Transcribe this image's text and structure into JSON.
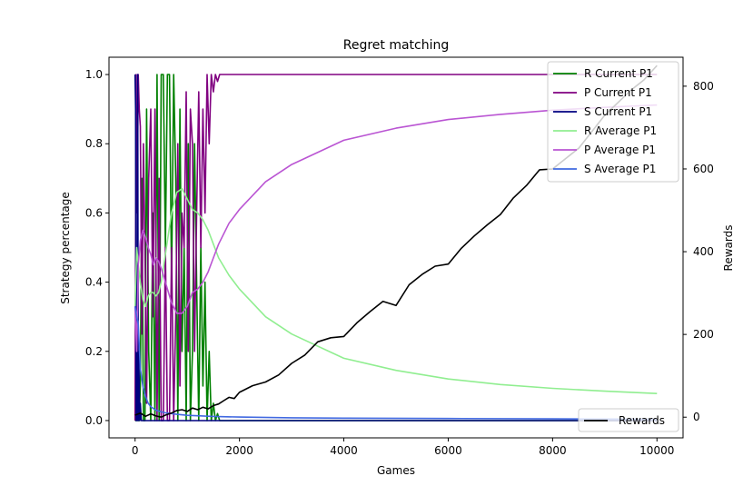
{
  "chart_data": {
    "type": "line",
    "title": "Regret matching",
    "xlabel": "Games",
    "ylabel_left": "Strategy percentage",
    "ylabel_right": "Rewards",
    "xlim": [
      -500,
      10500
    ],
    "ylim_left": [
      -0.05,
      1.05
    ],
    "ylim_right": [
      -50,
      870
    ],
    "x_ticks": [
      0,
      2000,
      4000,
      6000,
      8000,
      10000
    ],
    "y_ticks_left": [
      0.0,
      0.2,
      0.4,
      0.6,
      0.8,
      1.0
    ],
    "y_ticks_right": [
      0,
      200,
      400,
      600,
      800
    ],
    "grid": false,
    "legend_left_axis": "top-right",
    "legend_right_axis": "bottom-right",
    "series": [
      {
        "name": "R Current P1",
        "axis": "left",
        "color": "#008000",
        "x": [
          0,
          20,
          40,
          60,
          80,
          100,
          130,
          160,
          190,
          220,
          260,
          300,
          340,
          380,
          420,
          460,
          500,
          540,
          580,
          620,
          660,
          700,
          740,
          780,
          820,
          860,
          900,
          940,
          980,
          1020,
          1060,
          1100,
          1140,
          1180,
          1220,
          1260,
          1300,
          1340,
          1380,
          1420,
          1460,
          1500,
          1540,
          1580,
          1620,
          1700,
          10000
        ],
        "y": [
          0.0,
          0.0,
          0.3,
          0.0,
          0.0,
          0.1,
          0.7,
          0.0,
          0.0,
          0.9,
          0.2,
          0.0,
          0.6,
          0.0,
          1.0,
          0.0,
          1.0,
          1.0,
          0.5,
          1.0,
          1.0,
          0.4,
          1.0,
          0.7,
          0.0,
          0.9,
          0.2,
          0.5,
          0.0,
          0.8,
          0.0,
          0.2,
          0.8,
          0.4,
          0.0,
          0.5,
          0.1,
          0.4,
          0.0,
          0.2,
          0.0,
          0.05,
          0.0,
          0.02,
          0.0,
          0.0,
          0.0
        ]
      },
      {
        "name": "P Current P1",
        "axis": "left",
        "color": "#800080",
        "x": [
          0,
          20,
          40,
          60,
          80,
          100,
          130,
          160,
          190,
          220,
          260,
          300,
          340,
          380,
          420,
          460,
          500,
          540,
          580,
          620,
          660,
          700,
          740,
          780,
          820,
          860,
          900,
          940,
          980,
          1020,
          1060,
          1100,
          1140,
          1180,
          1220,
          1260,
          1300,
          1340,
          1380,
          1420,
          1460,
          1500,
          1540,
          1580,
          1620,
          1700,
          10000
        ],
        "y": [
          0.0,
          1.0,
          0.6,
          1.0,
          0.9,
          0.85,
          0.25,
          0.8,
          0.5,
          0.05,
          0.7,
          0.9,
          0.3,
          0.9,
          0.0,
          0.7,
          0.0,
          0.0,
          0.5,
          0.0,
          0.0,
          0.5,
          0.0,
          0.3,
          0.8,
          0.1,
          0.6,
          0.5,
          0.95,
          0.2,
          0.9,
          0.8,
          0.2,
          0.6,
          0.95,
          0.5,
          0.9,
          0.6,
          1.0,
          0.8,
          1.0,
          0.95,
          1.0,
          0.98,
          1.0,
          1.0,
          1.0
        ]
      },
      {
        "name": "S Current P1",
        "axis": "left",
        "color": "#000080",
        "x": [
          0,
          10,
          20,
          30,
          40,
          50,
          60,
          70,
          80,
          90,
          100,
          120,
          150,
          200,
          10000
        ],
        "y": [
          1.0,
          0.9,
          0.0,
          0.1,
          0.0,
          1.0,
          0.0,
          0.2,
          0.1,
          0.0,
          0.05,
          0.0,
          0.0,
          0.0,
          0.0
        ]
      },
      {
        "name": "R Average P1",
        "axis": "left",
        "color": "#90ee90",
        "x": [
          0,
          30,
          60,
          100,
          150,
          200,
          250,
          300,
          350,
          400,
          450,
          500,
          600,
          700,
          800,
          900,
          1000,
          1100,
          1200,
          1300,
          1400,
          1500,
          1600,
          1800,
          2000,
          2500,
          3000,
          4000,
          5000,
          6000,
          7000,
          8000,
          9000,
          10000
        ],
        "y": [
          0.33,
          0.5,
          0.45,
          0.4,
          0.35,
          0.33,
          0.36,
          0.37,
          0.37,
          0.36,
          0.37,
          0.4,
          0.5,
          0.6,
          0.66,
          0.67,
          0.64,
          0.61,
          0.6,
          0.58,
          0.55,
          0.51,
          0.47,
          0.42,
          0.38,
          0.3,
          0.25,
          0.18,
          0.145,
          0.12,
          0.104,
          0.093,
          0.085,
          0.078
        ]
      },
      {
        "name": "P Average P1",
        "axis": "left",
        "color": "#ba55d3",
        "x": [
          0,
          30,
          60,
          100,
          150,
          200,
          250,
          300,
          350,
          400,
          450,
          500,
          600,
          700,
          800,
          900,
          1000,
          1100,
          1200,
          1300,
          1400,
          1500,
          1600,
          1800,
          2000,
          2500,
          3000,
          4000,
          5000,
          6000,
          7000,
          8000,
          9000,
          10000
        ],
        "y": [
          0.33,
          0.2,
          0.45,
          0.52,
          0.55,
          0.53,
          0.5,
          0.48,
          0.45,
          0.47,
          0.46,
          0.44,
          0.39,
          0.34,
          0.31,
          0.31,
          0.33,
          0.37,
          0.38,
          0.4,
          0.43,
          0.47,
          0.51,
          0.57,
          0.61,
          0.69,
          0.74,
          0.81,
          0.845,
          0.87,
          0.885,
          0.897,
          0.905,
          0.912
        ]
      },
      {
        "name": "S Average P1",
        "axis": "left",
        "color": "#4169e1",
        "x": [
          0,
          30,
          60,
          100,
          150,
          200,
          250,
          300,
          350,
          400,
          500,
          600,
          800,
          1000,
          1500,
          2000,
          3000,
          4000,
          6000,
          8000,
          10000
        ],
        "y": [
          0.33,
          0.3,
          0.28,
          0.15,
          0.1,
          0.07,
          0.05,
          0.04,
          0.035,
          0.03,
          0.025,
          0.022,
          0.018,
          0.015,
          0.012,
          0.01,
          0.008,
          0.007,
          0.006,
          0.005,
          0.004
        ]
      },
      {
        "name": "Rewards",
        "axis": "right",
        "color": "#000000",
        "x": [
          0,
          100,
          200,
          300,
          400,
          500,
          600,
          700,
          800,
          900,
          1000,
          1100,
          1200,
          1300,
          1400,
          1500,
          1600,
          1700,
          1800,
          1900,
          2000,
          2250,
          2500,
          2750,
          3000,
          3250,
          3500,
          3750,
          4000,
          4250,
          4500,
          4750,
          5000,
          5250,
          5500,
          5750,
          6000,
          6250,
          6500,
          6750,
          7000,
          7250,
          7500,
          7750,
          8000,
          8250,
          8500,
          8750,
          9000,
          9250,
          9500,
          9750,
          10000
        ],
        "y": [
          5,
          10,
          2,
          8,
          3,
          0,
          6,
          10,
          16,
          18,
          14,
          22,
          18,
          24,
          20,
          28,
          32,
          40,
          48,
          45,
          60,
          76,
          85,
          102,
          130,
          150,
          182,
          192,
          195,
          228,
          255,
          280,
          270,
          320,
          345,
          365,
          370,
          408,
          438,
          465,
          490,
          530,
          560,
          598,
          600,
          625,
          650,
          690,
          730,
          760,
          790,
          815,
          850
        ]
      }
    ]
  }
}
